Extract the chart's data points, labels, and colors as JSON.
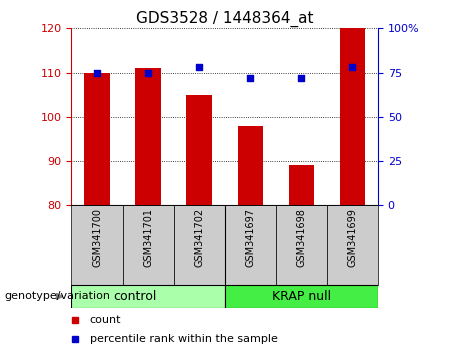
{
  "title": "GDS3528 / 1448364_at",
  "categories": [
    "GSM341700",
    "GSM341701",
    "GSM341702",
    "GSM341697",
    "GSM341698",
    "GSM341699"
  ],
  "bar_values": [
    110,
    111,
    105,
    98,
    89,
    120
  ],
  "dot_values": [
    75,
    75,
    78,
    72,
    72,
    78
  ],
  "ymin": 80,
  "ymax": 120,
  "yticks_left": [
    80,
    90,
    100,
    110,
    120
  ],
  "yticks_right": [
    0,
    25,
    50,
    75,
    100
  ],
  "bar_color": "#cc0000",
  "dot_color": "#0000cc",
  "group_labels": [
    "control",
    "KRAP null"
  ],
  "group_colors": [
    "#aaffaa",
    "#44ee44"
  ],
  "group_split": 2.5,
  "xlabel_group": "genotype/variation",
  "legend_count_label": "count",
  "legend_pct_label": "percentile rank within the sample",
  "xticklabel_bg": "#cccccc",
  "title_fontsize": 11,
  "tick_fontsize": 8,
  "xtick_fontsize": 7,
  "group_fontsize": 9,
  "legend_fontsize": 8,
  "genotype_fontsize": 8
}
